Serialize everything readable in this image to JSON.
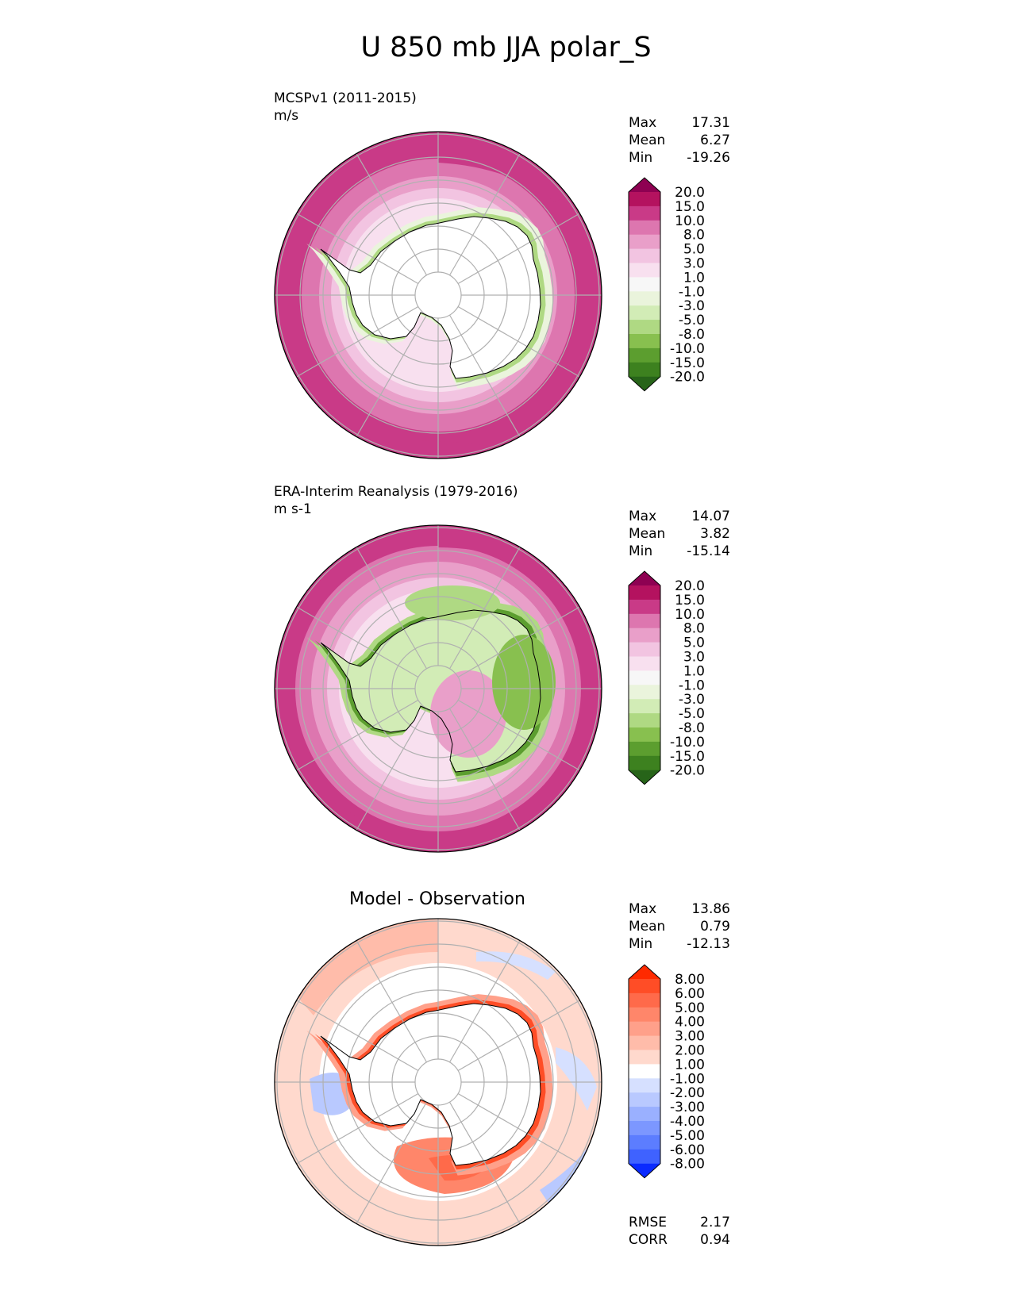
{
  "figure": {
    "title": "U 850 mb JJA polar_S"
  },
  "panels": [
    {
      "name": "test",
      "label": "MCSPv1 (2011-2015)",
      "units": "m/s",
      "stats": [
        {
          "label": "Max",
          "value": "17.31"
        },
        {
          "label": "Mean",
          "value": "6.27"
        },
        {
          "label": "Min",
          "value": "-19.26"
        }
      ],
      "colorbar": {
        "levels": [
          "20.0",
          "15.0",
          "10.0",
          "8.0",
          "5.0",
          "3.0",
          "1.0",
          "-1.0",
          "-3.0",
          "-5.0",
          "-8.0",
          "-10.0",
          "-15.0",
          "-20.0"
        ],
        "colors": [
          "#8e0152",
          "#b4125f",
          "#c93a87",
          "#dd76af",
          "#e99fc9",
          "#f2c4e1",
          "#f8e0ef",
          "#f7f7f7",
          "#eaf4dc",
          "#d2ecb6",
          "#afd983",
          "#88c04f",
          "#5c9e2f",
          "#3d811f",
          "#276419"
        ]
      }
    },
    {
      "name": "reference",
      "label": "ERA-Interim Reanalysis (1979-2016)",
      "units": "m s-1",
      "stats": [
        {
          "label": "Max",
          "value": "14.07"
        },
        {
          "label": "Mean",
          "value": "3.82"
        },
        {
          "label": "Min",
          "value": "-15.14"
        }
      ],
      "colorbar": {
        "levels": [
          "20.0",
          "15.0",
          "10.0",
          "8.0",
          "5.0",
          "3.0",
          "1.0",
          "-1.0",
          "-3.0",
          "-5.0",
          "-8.0",
          "-10.0",
          "-15.0",
          "-20.0"
        ],
        "colors": [
          "#8e0152",
          "#b4125f",
          "#c93a87",
          "#dd76af",
          "#e99fc9",
          "#f2c4e1",
          "#f8e0ef",
          "#f7f7f7",
          "#eaf4dc",
          "#d2ecb6",
          "#afd983",
          "#88c04f",
          "#5c9e2f",
          "#3d811f",
          "#276419"
        ]
      }
    },
    {
      "name": "difference",
      "label": "Model - Observation",
      "units": "",
      "stats": [
        {
          "label": "Max",
          "value": "13.86"
        },
        {
          "label": "Mean",
          "value": "0.79"
        },
        {
          "label": "Min",
          "value": "-12.13"
        }
      ],
      "extra_stats": [
        {
          "label": "RMSE",
          "value": "2.17"
        },
        {
          "label": "CORR",
          "value": "0.94"
        }
      ],
      "colorbar": {
        "levels": [
          "8.00",
          "6.00",
          "5.00",
          "4.00",
          "3.00",
          "2.00",
          "1.00",
          "-1.00",
          "-2.00",
          "-3.00",
          "-4.00",
          "-5.00",
          "-6.00",
          "-8.00"
        ],
        "colors": [
          "#ff2a00",
          "#ff4d26",
          "#ff6a4a",
          "#ff866a",
          "#ffa08a",
          "#ffbcaa",
          "#ffd9cd",
          "#ffffff",
          "#d6e0ff",
          "#b9c9ff",
          "#9ab0ff",
          "#7c97ff",
          "#5c7dff",
          "#3f62ff",
          "#0a2aff"
        ]
      }
    }
  ],
  "chart_data": [
    {
      "type": "heatmap",
      "projection": "south polar stereographic",
      "title": "MCSPv1 (2011-2015)",
      "units": "m/s",
      "field": "zonal wind U at 850 mb, JJA",
      "summary": {
        "max": 17.31,
        "mean": 6.27,
        "min": -19.26
      },
      "color_levels": [
        -20.0,
        -15.0,
        -10.0,
        -8.0,
        -5.0,
        -3.0,
        -1.0,
        1.0,
        3.0,
        5.0,
        8.0,
        10.0,
        15.0,
        20.0
      ],
      "grid": true,
      "coastlines": true
    },
    {
      "type": "heatmap",
      "projection": "south polar stereographic",
      "title": "ERA-Interim Reanalysis (1979-2016)",
      "units": "m s-1",
      "field": "zonal wind U at 850 mb, JJA",
      "summary": {
        "max": 14.07,
        "mean": 3.82,
        "min": -15.14
      },
      "color_levels": [
        -20.0,
        -15.0,
        -10.0,
        -8.0,
        -5.0,
        -3.0,
        -1.0,
        1.0,
        3.0,
        5.0,
        8.0,
        10.0,
        15.0,
        20.0
      ],
      "grid": true,
      "coastlines": true
    },
    {
      "type": "heatmap",
      "projection": "south polar stereographic",
      "title": "Model - Observation",
      "field": "difference",
      "summary": {
        "max": 13.86,
        "mean": 0.79,
        "min": -12.13,
        "rmse": 2.17,
        "corr": 0.94
      },
      "color_levels": [
        -8.0,
        -6.0,
        -5.0,
        -4.0,
        -3.0,
        -2.0,
        -1.0,
        1.0,
        2.0,
        3.0,
        4.0,
        5.0,
        6.0,
        8.0
      ],
      "grid": true,
      "coastlines": true
    }
  ]
}
